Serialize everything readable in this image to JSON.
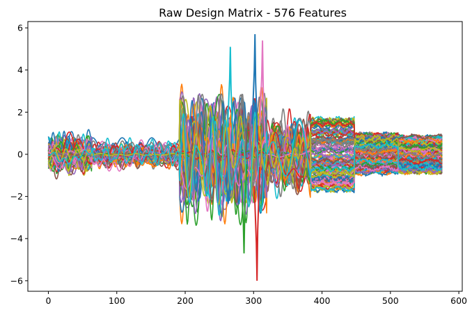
{
  "chart_data": {
    "type": "line",
    "title": "Raw Design Matrix - 576 Features",
    "xlabel": "",
    "ylabel": "",
    "xlim": [
      -30,
      605
    ],
    "ylim": [
      -6.5,
      6.3
    ],
    "xticks": [
      0,
      100,
      200,
      300,
      400,
      500,
      600
    ],
    "yticks": [
      -6,
      -4,
      -2,
      0,
      2,
      4,
      6
    ],
    "ytick_labels": [
      "−6",
      "−4",
      "−2",
      "0",
      "2",
      "4",
      "6"
    ],
    "grid": false,
    "legend": false,
    "n_samples": 577,
    "n_features": 576,
    "color_cycle": [
      "#1f77b4",
      "#ff7f0e",
      "#2ca02c",
      "#d62728",
      "#9467bd",
      "#8c564b",
      "#e377c2",
      "#7f7f7f",
      "#bcbd22",
      "#17becf"
    ],
    "segments": [
      {
        "x_range": [
          0,
          64
        ],
        "amplitude": 1.05,
        "pattern": "wave"
      },
      {
        "x_range": [
          64,
          192
        ],
        "amplitude": 0.7,
        "pattern": "wave"
      },
      {
        "x_range": [
          192,
          320
        ],
        "amplitude": 3.0,
        "pattern": "wave"
      },
      {
        "x_range": [
          320,
          384
        ],
        "amplitude": 2.0,
        "pattern": "wave"
      },
      {
        "x_range": [
          384,
          448
        ],
        "amplitude": 2.0,
        "pattern": "step"
      },
      {
        "x_range": [
          448,
          512
        ],
        "amplitude": 1.1,
        "pattern": "step"
      },
      {
        "x_range": [
          512,
          576
        ],
        "amplitude": 1.0,
        "pattern": "step"
      }
    ],
    "extremes": [
      {
        "x": 302,
        "y": 5.7
      },
      {
        "x": 305,
        "y": -6.0
      },
      {
        "x": 313,
        "y": 5.4
      },
      {
        "x": 266,
        "y": 5.1
      },
      {
        "x": 286,
        "y": -4.7
      }
    ]
  }
}
